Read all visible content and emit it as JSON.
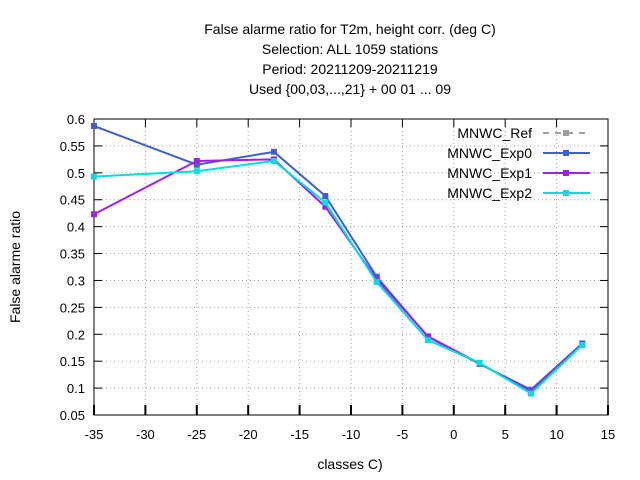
{
  "chart_data": {
    "type": "line",
    "title_lines": [
      "False alarme ratio  for T2m, height corr. (deg C)",
      "Selection: ALL    1059 stations",
      "Period: 20211209-20211219",
      "Used {00,03,...,21} + 00 01 ... 09"
    ],
    "xlabel": "classes C)",
    "ylabel": "False alarme ratio",
    "xlim": [
      -35,
      15
    ],
    "ylim": [
      0.05,
      0.6
    ],
    "xticks": [
      -35,
      -30,
      -25,
      -20,
      -15,
      -10,
      -5,
      0,
      5,
      10,
      15
    ],
    "yticks": [
      0.05,
      0.1,
      0.15,
      0.2,
      0.25,
      0.3,
      0.35,
      0.4,
      0.45,
      0.5,
      0.55,
      0.6
    ],
    "grid": true,
    "legend_position": "top-right",
    "series": [
      {
        "name": "MNWC_Ref",
        "color": "#a0a0a0",
        "dashed": true,
        "x": [],
        "values": []
      },
      {
        "name": "MNWC_Exp0",
        "color": "#4060d0",
        "dashed": false,
        "x": [
          -35,
          -25,
          -17.5,
          -12.5,
          -7.5,
          -2.5,
          2.5,
          7.5,
          12.5
        ],
        "values": [
          0.587,
          0.515,
          0.539,
          0.457,
          0.307,
          0.195,
          0.145,
          0.097,
          0.183
        ]
      },
      {
        "name": "MNWC_Exp1",
        "color": "#a020f0",
        "dashed": false,
        "x": [
          -35,
          -25,
          -17.5,
          -12.5,
          -7.5,
          -2.5,
          2.5,
          7.5,
          12.5
        ],
        "values": [
          0.423,
          0.522,
          0.525,
          0.437,
          0.302,
          0.196,
          0.146,
          0.093,
          0.181
        ]
      },
      {
        "name": "MNWC_Exp2",
        "color": "#00e0e0",
        "dashed": false,
        "x": [
          -35,
          -25,
          -17.5,
          -12.5,
          -7.5,
          -2.5,
          2.5,
          7.5,
          12.5
        ],
        "values": [
          0.493,
          0.503,
          0.522,
          0.445,
          0.297,
          0.189,
          0.147,
          0.09,
          0.18
        ]
      }
    ]
  }
}
